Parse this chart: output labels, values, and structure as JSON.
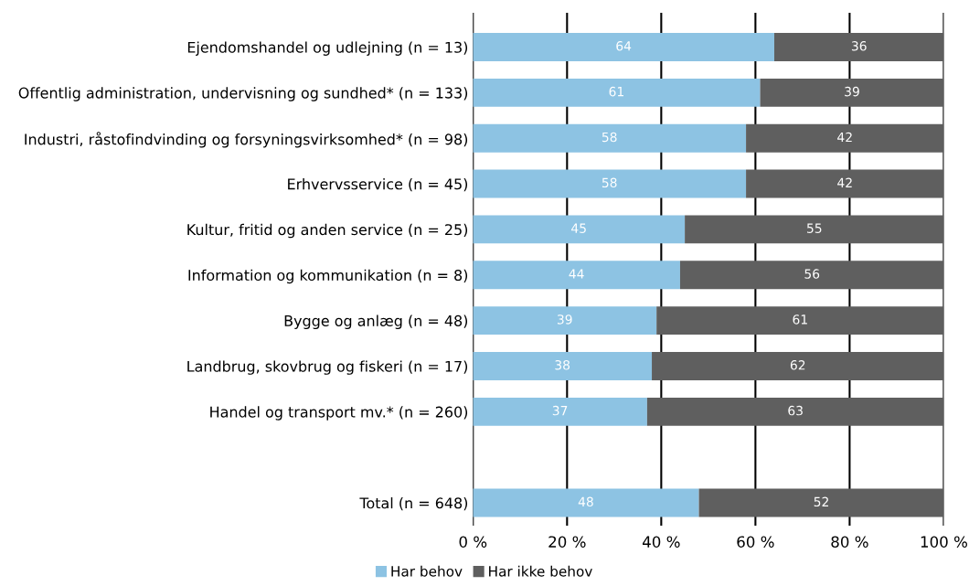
{
  "chart_data": {
    "type": "bar",
    "orientation": "horizontal",
    "stacked": true,
    "categories": [
      "Ejendomshandel og udlejning (n = 13)",
      "Offentlig administration, undervisning og sundhed* (n = 133)",
      "Industri, råstofindvinding og forsyningsvirksomhed* (n = 98)",
      "Erhvervsservice (n = 45)",
      "Kultur, fritid og anden service (n = 25)",
      "Information og kommunikation (n = 8)",
      "Bygge og anlæg (n = 48)",
      "Landbrug, skovbrug og fiskeri (n = 17)",
      "Handel og transport mv.* (n = 260)",
      null,
      "Total (n = 648)"
    ],
    "series": [
      {
        "name": "Har behov",
        "color": "#8dc3e3",
        "values": [
          64,
          61,
          58,
          58,
          45,
          44,
          39,
          38,
          37,
          null,
          48
        ]
      },
      {
        "name": "Har ikke behov",
        "color": "#5f5f5f",
        "values": [
          36,
          39,
          42,
          42,
          55,
          56,
          61,
          62,
          63,
          null,
          52
        ]
      }
    ],
    "xlim": [
      0,
      100
    ],
    "xticks": [
      {
        "value": 0,
        "label": "0 %"
      },
      {
        "value": 20,
        "label": "20 %"
      },
      {
        "value": 40,
        "label": "40 %"
      },
      {
        "value": 60,
        "label": "60 %"
      },
      {
        "value": 80,
        "label": "80 %"
      },
      {
        "value": 100,
        "label": "100 %"
      }
    ],
    "grid": "x",
    "legend": "bottom",
    "data_labels": true
  }
}
